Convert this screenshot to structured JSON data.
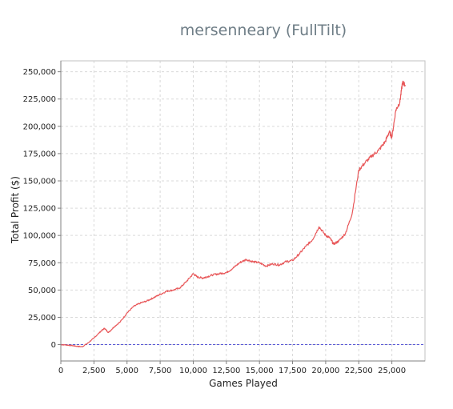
{
  "chart_data": {
    "type": "line",
    "title": "mersenneary (FullTilt)",
    "xlabel": "Games Played",
    "ylabel": "Total Profit ($)",
    "xlim": [
      0,
      27500
    ],
    "ylim": [
      -15000,
      260000
    ],
    "x_ticks": [
      {
        "value": 0,
        "label": "0"
      },
      {
        "value": 2500,
        "label": "2,500"
      },
      {
        "value": 5000,
        "label": "5,000"
      },
      {
        "value": 7500,
        "label": "7,500"
      },
      {
        "value": 10000,
        "label": "10,000"
      },
      {
        "value": 12500,
        "label": "12,500"
      },
      {
        "value": 15000,
        "label": "15,000"
      },
      {
        "value": 17500,
        "label": "17,500"
      },
      {
        "value": 20000,
        "label": "20,000"
      },
      {
        "value": 22500,
        "label": "22,500"
      },
      {
        "value": 25000,
        "label": "25,000"
      }
    ],
    "y_ticks": [
      {
        "value": 0,
        "label": "0"
      },
      {
        "value": 25000,
        "label": "25,000"
      },
      {
        "value": 50000,
        "label": "50,000"
      },
      {
        "value": 75000,
        "label": "75,000"
      },
      {
        "value": 100000,
        "label": "100,000"
      },
      {
        "value": 125000,
        "label": "125,000"
      },
      {
        "value": 150000,
        "label": "150,000"
      },
      {
        "value": 175000,
        "label": "175,000"
      },
      {
        "value": 200000,
        "label": "200,000"
      },
      {
        "value": 225000,
        "label": "225,000"
      },
      {
        "value": 250000,
        "label": "250,000"
      }
    ],
    "grid": true,
    "zero_line": {
      "y": 0,
      "color": "#5b5bd6",
      "style": "dashed"
    },
    "series": [
      {
        "color": "#e8585a",
        "x": [
          0,
          400,
          800,
          1200,
          1600,
          2000,
          2500,
          3000,
          3300,
          3600,
          4000,
          4500,
          5000,
          5500,
          6000,
          6500,
          7000,
          7500,
          8000,
          8500,
          9000,
          9500,
          10000,
          10300,
          10700,
          11000,
          11500,
          12000,
          12500,
          13000,
          13500,
          14000,
          14500,
          15000,
          15500,
          16000,
          16500,
          17000,
          17500,
          18000,
          18500,
          19000,
          19500,
          20000,
          20300,
          20600,
          21000,
          21500,
          22000,
          22500,
          23000,
          23500,
          24000,
          24500,
          24800,
          25000,
          25300,
          25600,
          25800,
          26000
        ],
        "y": [
          0,
          -300,
          -800,
          -1500,
          -2000,
          1000,
          6000,
          12000,
          15000,
          11000,
          16000,
          21000,
          29000,
          35000,
          38000,
          40000,
          43000,
          46000,
          49000,
          50000,
          52000,
          58000,
          65000,
          62000,
          61000,
          62000,
          64000,
          65000,
          66000,
          70000,
          75000,
          78000,
          76000,
          75000,
          72000,
          74000,
          73000,
          76000,
          77000,
          83000,
          90000,
          96000,
          108000,
          100000,
          98000,
          92000,
          95000,
          102000,
          120000,
          160000,
          167000,
          173000,
          178000,
          186000,
          195000,
          190000,
          215000,
          222000,
          240000,
          238000
        ]
      }
    ]
  }
}
